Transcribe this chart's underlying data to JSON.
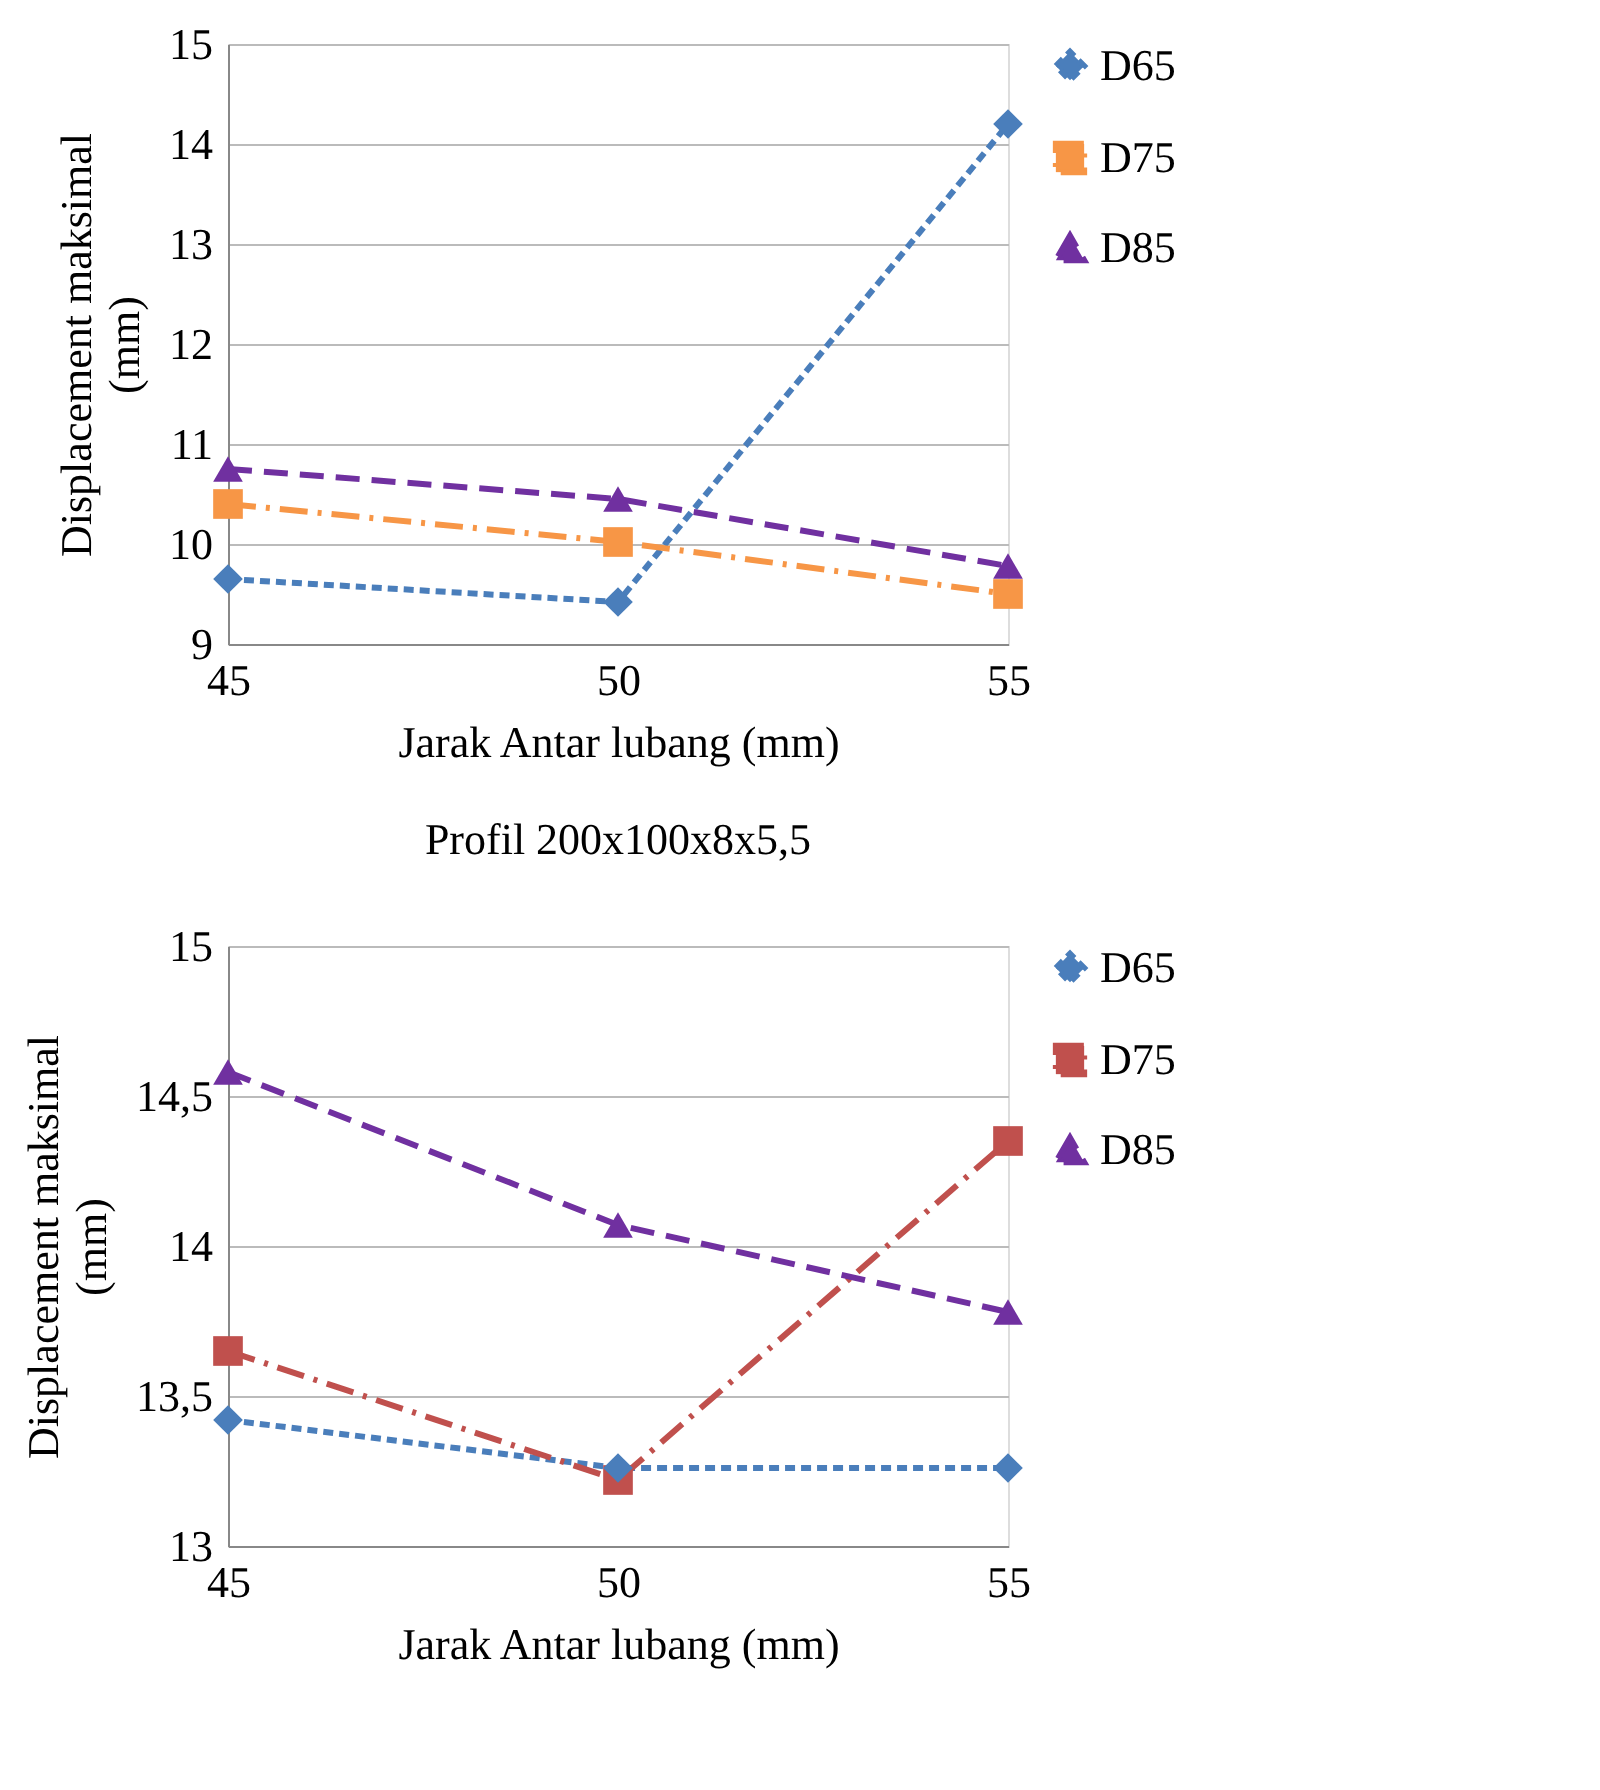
{
  "chart_data": [
    {
      "type": "line",
      "xlabel": "Jarak Antar lubang (mm)",
      "ylabel": "Displacement maksimal (mm)",
      "categories": [
        "45",
        "50",
        "55"
      ],
      "ylim": [
        9,
        15
      ],
      "yticks": [
        9,
        10,
        11,
        12,
        13,
        14,
        15
      ],
      "grid": "y",
      "legend": "right",
      "series": [
        {
          "name": "D65",
          "color": "#4a7ebb",
          "marker": "diamond",
          "line_style": "dashed",
          "values": [
            9.65,
            9.42,
            14.2
          ]
        },
        {
          "name": "D75",
          "color": "#f79646",
          "marker": "square",
          "line_style": "dashed",
          "values": [
            10.4,
            10.02,
            9.5
          ]
        },
        {
          "name": "D85",
          "color": "#7030a0",
          "marker": "triangle",
          "line_style": "dashed",
          "values": [
            10.75,
            10.45,
            9.78
          ]
        }
      ]
    },
    {
      "type": "line",
      "title": "Profil 200x100x8x5,5",
      "xlabel": "Jarak Antar lubang (mm)",
      "ylabel": "Displacement maksimal (mm)",
      "categories": [
        "45",
        "50",
        "55"
      ],
      "ylim": [
        13,
        15
      ],
      "yticks": [
        13,
        {
          "value": 13.5,
          "label": "13,5"
        },
        14,
        {
          "value": 14.5,
          "label": "14,5"
        },
        15
      ],
      "grid": "y",
      "legend": "right",
      "series": [
        {
          "name": "D65",
          "color": "#4a7ebb",
          "marker": "diamond",
          "line_style": "dashed",
          "values": [
            13.42,
            13.26,
            13.26
          ]
        },
        {
          "name": "D75",
          "color": "#c0504d",
          "marker": "square",
          "line_style": "dashed",
          "values": [
            13.65,
            13.22,
            14.35
          ]
        },
        {
          "name": "D85",
          "color": "#7030a0",
          "marker": "triangle",
          "line_style": "dashed",
          "values": [
            14.58,
            14.07,
            13.78
          ]
        }
      ]
    }
  ]
}
